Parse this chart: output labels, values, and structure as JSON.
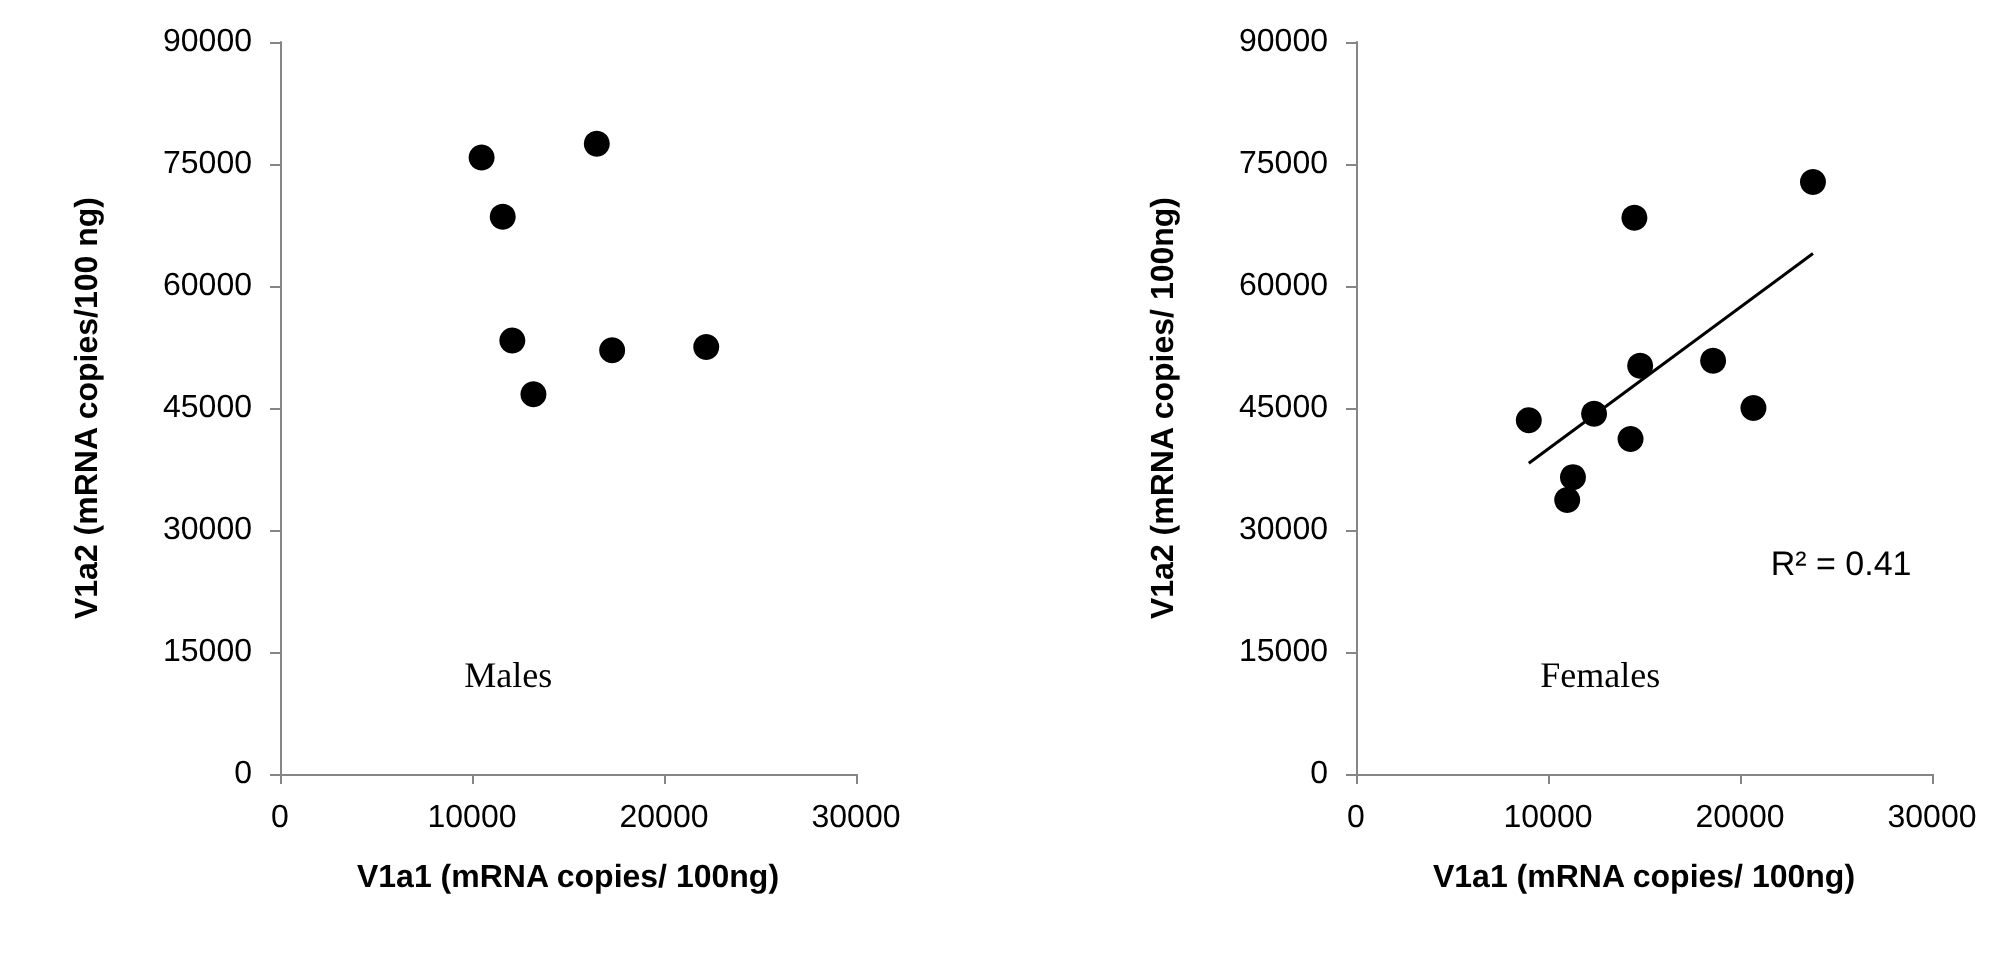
{
  "chart_data": [
    {
      "type": "scatter",
      "xlabel": "V1a1 (mRNA copies/ 100ng)",
      "ylabel": "V1a2 (mRNA copies/100 ng)",
      "xlim": [
        0,
        30000
      ],
      "xticks": [
        0,
        10000,
        20000,
        30000
      ],
      "ylim": [
        0,
        90000
      ],
      "yticks": [
        0,
        15000,
        30000,
        45000,
        60000,
        75000,
        90000
      ],
      "grid": false,
      "marker": "circle",
      "annotations": [
        "Males"
      ],
      "series": [
        {
          "color": "#000000",
          "x": [
            10500,
            11600,
            12100,
            13200,
            16500,
            17300,
            22200
          ],
          "values": [
            75800,
            68500,
            53300,
            46700,
            77500,
            52100,
            52500
          ]
        }
      ]
    },
    {
      "type": "scatter",
      "xlabel": "V1a1 (mRNA copies/ 100ng)",
      "ylabel": "V1a2 (mRNA copies/ 100ng)",
      "xlim": [
        0,
        30000
      ],
      "xticks": [
        0,
        10000,
        20000,
        30000
      ],
      "ylim": [
        0,
        90000
      ],
      "yticks": [
        0,
        15000,
        30000,
        45000,
        60000,
        75000,
        90000
      ],
      "grid": false,
      "marker": "circle",
      "annotations": [
        "Females",
        "R² = 0.41"
      ],
      "series": [
        {
          "color": "#000000",
          "x": [
            9000,
            11000,
            11300,
            12400,
            14300,
            14500,
            14800,
            18600,
            20700,
            23800
          ],
          "values": [
            43500,
            33700,
            36500,
            44300,
            41200,
            68400,
            50200,
            50800,
            45000,
            72800
          ]
        },
        {
          "type": "line",
          "marker": "none",
          "color": "#000000",
          "x": [
            9000,
            23800
          ],
          "values": [
            38200,
            64000
          ]
        }
      ]
    }
  ]
}
